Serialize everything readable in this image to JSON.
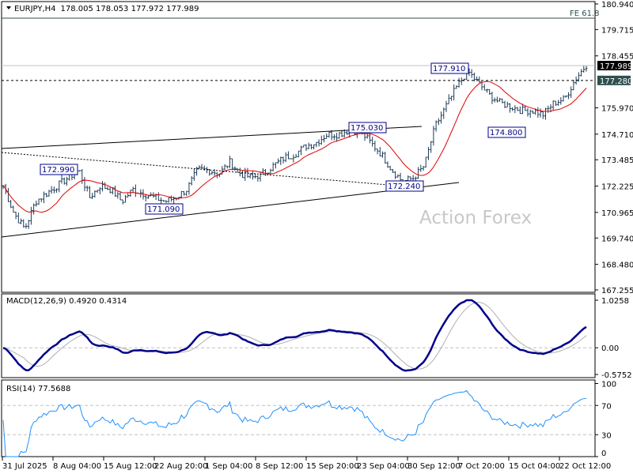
{
  "header": {
    "symbol": "EURJPY,H4",
    "ohlc": "178.005 178.053 177.972 177.989"
  },
  "watermark": "Action Forex",
  "colors": {
    "bars": "#1c3a56",
    "ma": "#e00000",
    "macd": "#00008b",
    "signal": "#b0b0b0",
    "rsi": "#1e90ff",
    "price_tag": "#000000",
    "level_tag": "#2f4f4f"
  },
  "chart_data": [
    {
      "type": "bar",
      "title": "EURJPY,H4",
      "ylim": [
        167.255,
        180.94
      ],
      "y_ticks": [
        "180.940",
        "179.715",
        "178.455",
        "177.989",
        "177.280",
        "175.970",
        "174.710",
        "173.485",
        "172.225",
        "170.965",
        "169.740",
        "168.480",
        "167.255"
      ],
      "x_ticks": [
        "31 Jul 2025",
        "8 Aug 04:00",
        "15 Aug 12:00",
        "22 Aug 20:00",
        "1 Sep 04:00",
        "8 Sep 12:00",
        "15 Sep 20:00",
        "23 Sep 04:00",
        "30 Sep 12:00",
        "7 Oct 20:00",
        "15 Oct 04:00",
        "22 Oct 12:00"
      ],
      "close_path": [
        172.24,
        170.92,
        170.17,
        171.49,
        171.87,
        172.24,
        172.62,
        173.0,
        171.68,
        172.24,
        172.06,
        171.49,
        172.06,
        171.87,
        171.68,
        171.49,
        171.68,
        172.06,
        173.0,
        173.0,
        172.81,
        173.38,
        172.81,
        172.62,
        172.81,
        173.19,
        173.57,
        173.76,
        174.13,
        174.32,
        174.7,
        174.7,
        174.89,
        174.89,
        174.32,
        173.76,
        173.0,
        172.43,
        172.62,
        173.19,
        175.08,
        176.03,
        176.97,
        177.73,
        177.16,
        176.59,
        176.21,
        176.03,
        175.84,
        175.84,
        175.65,
        176.21,
        176.4,
        177.35,
        178.03
      ],
      "current_price": "177.989",
      "level": "177.280",
      "fe_label": "FE 61.8",
      "fe_level": 180.26,
      "annotations": [
        "177.910",
        "175.030",
        "172.990",
        "171.090",
        "172.240",
        "174.800"
      ]
    },
    {
      "type": "line",
      "title": "MACD(12,26,9) 0.4920 0.4314",
      "ylim": [
        -0.5752,
        1.0258
      ],
      "y_ticks": [
        "1.0258",
        "0.00",
        "-0.5752"
      ]
    },
    {
      "type": "line",
      "title": "RSI(14) 77.5688",
      "ylim": [
        0,
        100
      ],
      "y_ticks": [
        "100",
        "70",
        "30",
        "0"
      ]
    }
  ]
}
